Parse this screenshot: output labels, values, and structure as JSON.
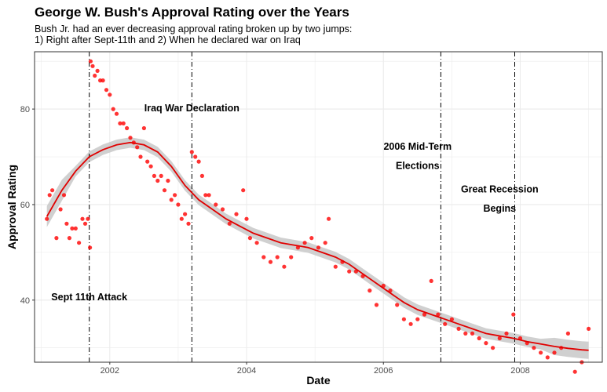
{
  "title": "George W. Bush's Approval Rating over the Years",
  "subtitle": "Bush Jr. had an ever decreasing approval rating broken up by two jumps:\n1) Right after Sept-11th and 2) When he declared war on Iraq",
  "colors": {
    "points": "#ff0000",
    "trend": "#e00000",
    "band": "#c8c8c8",
    "grid": "#ebebeb",
    "panel_border": "#333333"
  },
  "chart_data": {
    "type": "scatter",
    "title": "George W. Bush's Approval Rating over the Years",
    "xlabel": "Date",
    "ylabel": "Approval Rating",
    "xlim": [
      2000.9,
      2009.2
    ],
    "ylim": [
      27,
      92
    ],
    "x_ticks": [
      2002,
      2004,
      2006,
      2008
    ],
    "x_tick_labels": [
      "2002",
      "2004",
      "2006",
      "2008"
    ],
    "y_ticks": [
      40,
      60,
      80
    ],
    "y_tick_labels": [
      "40",
      "60",
      "80"
    ],
    "grid": true,
    "legend": "none",
    "series": [
      {
        "type": "scatter",
        "points": [
          [
            2001.08,
            57
          ],
          [
            2001.12,
            62
          ],
          [
            2001.16,
            63
          ],
          [
            2001.22,
            53
          ],
          [
            2001.28,
            59
          ],
          [
            2001.33,
            62
          ],
          [
            2001.37,
            56
          ],
          [
            2001.41,
            53
          ],
          [
            2001.45,
            55
          ],
          [
            2001.5,
            55
          ],
          [
            2001.55,
            52
          ],
          [
            2001.6,
            57
          ],
          [
            2001.64,
            56
          ],
          [
            2001.68,
            57
          ],
          [
            2001.71,
            51
          ],
          [
            2001.72,
            90
          ],
          [
            2001.75,
            89
          ],
          [
            2001.78,
            87
          ],
          [
            2001.82,
            88
          ],
          [
            2001.86,
            86
          ],
          [
            2001.9,
            86
          ],
          [
            2001.95,
            84
          ],
          [
            2002.0,
            83
          ],
          [
            2002.05,
            80
          ],
          [
            2002.1,
            79
          ],
          [
            2002.15,
            77
          ],
          [
            2002.2,
            77
          ],
          [
            2002.25,
            76
          ],
          [
            2002.3,
            74
          ],
          [
            2002.35,
            73
          ],
          [
            2002.4,
            72
          ],
          [
            2002.45,
            70
          ],
          [
            2002.5,
            76
          ],
          [
            2002.55,
            69
          ],
          [
            2002.6,
            68
          ],
          [
            2002.65,
            66
          ],
          [
            2002.7,
            65
          ],
          [
            2002.75,
            66
          ],
          [
            2002.8,
            63
          ],
          [
            2002.85,
            65
          ],
          [
            2002.9,
            61
          ],
          [
            2002.95,
            62
          ],
          [
            2003.0,
            60
          ],
          [
            2003.05,
            57
          ],
          [
            2003.1,
            58
          ],
          [
            2003.15,
            56
          ],
          [
            2003.2,
            71
          ],
          [
            2003.25,
            70
          ],
          [
            2003.3,
            69
          ],
          [
            2003.35,
            66
          ],
          [
            2003.4,
            62
          ],
          [
            2003.45,
            62
          ],
          [
            2003.55,
            60
          ],
          [
            2003.65,
            59
          ],
          [
            2003.75,
            56
          ],
          [
            2003.85,
            58
          ],
          [
            2003.95,
            63
          ],
          [
            2004.0,
            57
          ],
          [
            2004.05,
            53
          ],
          [
            2004.15,
            52
          ],
          [
            2004.25,
            49
          ],
          [
            2004.35,
            48
          ],
          [
            2004.45,
            49
          ],
          [
            2004.55,
            47
          ],
          [
            2004.65,
            49
          ],
          [
            2004.75,
            51
          ],
          [
            2004.85,
            52
          ],
          [
            2004.95,
            53
          ],
          [
            2005.05,
            51
          ],
          [
            2005.15,
            52
          ],
          [
            2005.2,
            57
          ],
          [
            2005.3,
            47
          ],
          [
            2005.4,
            48
          ],
          [
            2005.5,
            46
          ],
          [
            2005.6,
            46
          ],
          [
            2005.7,
            45
          ],
          [
            2005.8,
            42
          ],
          [
            2005.9,
            39
          ],
          [
            2006.0,
            43
          ],
          [
            2006.1,
            42
          ],
          [
            2006.2,
            39
          ],
          [
            2006.3,
            36
          ],
          [
            2006.4,
            35
          ],
          [
            2006.5,
            36
          ],
          [
            2006.6,
            37
          ],
          [
            2006.7,
            44
          ],
          [
            2006.8,
            37
          ],
          [
            2006.9,
            35
          ],
          [
            2007.0,
            36
          ],
          [
            2007.1,
            34
          ],
          [
            2007.2,
            33
          ],
          [
            2007.3,
            33
          ],
          [
            2007.4,
            32
          ],
          [
            2007.5,
            31
          ],
          [
            2007.6,
            30
          ],
          [
            2007.7,
            32
          ],
          [
            2007.8,
            33
          ],
          [
            2007.9,
            37
          ],
          [
            2008.0,
            32
          ],
          [
            2008.1,
            31
          ],
          [
            2008.2,
            30
          ],
          [
            2008.3,
            29
          ],
          [
            2008.4,
            28
          ],
          [
            2008.5,
            29
          ],
          [
            2008.6,
            30
          ],
          [
            2008.7,
            33
          ],
          [
            2008.8,
            25
          ],
          [
            2008.9,
            27
          ],
          [
            2009.0,
            34
          ]
        ]
      },
      {
        "type": "line",
        "smooth": true,
        "points": [
          [
            2001.08,
            57.5
          ],
          [
            2001.3,
            63
          ],
          [
            2001.5,
            67
          ],
          [
            2001.7,
            70
          ],
          [
            2001.9,
            71.5
          ],
          [
            2002.1,
            72.5
          ],
          [
            2002.3,
            73
          ],
          [
            2002.5,
            72.5
          ],
          [
            2002.7,
            71
          ],
          [
            2002.9,
            68
          ],
          [
            2003.1,
            64
          ],
          [
            2003.3,
            61
          ],
          [
            2003.5,
            59
          ],
          [
            2003.7,
            57
          ],
          [
            2003.9,
            55.5
          ],
          [
            2004.1,
            54
          ],
          [
            2004.3,
            53
          ],
          [
            2004.5,
            52
          ],
          [
            2004.7,
            51.5
          ],
          [
            2004.9,
            51
          ],
          [
            2005.1,
            50
          ],
          [
            2005.3,
            49
          ],
          [
            2005.5,
            47.5
          ],
          [
            2005.7,
            45.5
          ],
          [
            2005.9,
            43.5
          ],
          [
            2006.1,
            41.5
          ],
          [
            2006.3,
            39.5
          ],
          [
            2006.5,
            38
          ],
          [
            2006.7,
            37
          ],
          [
            2006.9,
            36
          ],
          [
            2007.1,
            35
          ],
          [
            2007.3,
            34
          ],
          [
            2007.5,
            33
          ],
          [
            2007.7,
            32.5
          ],
          [
            2007.9,
            32
          ],
          [
            2008.1,
            31.3
          ],
          [
            2008.3,
            30.8
          ],
          [
            2008.5,
            30.3
          ],
          [
            2008.7,
            29.9
          ],
          [
            2008.9,
            29.6
          ],
          [
            2009.0,
            29.5
          ]
        ]
      }
    ],
    "vlines": [
      2001.7,
      2003.2,
      2006.84,
      2007.92
    ],
    "annotations": [
      {
        "text": "Iraq War Declaration",
        "x": 2003.2,
        "y": 79.5
      },
      {
        "text": "2006 Mid-Term",
        "x": 2006.5,
        "y": 71.5
      },
      {
        "text": "Elections",
        "x": 2006.5,
        "y": 67.5
      },
      {
        "text": "Great Recession",
        "x": 2007.7,
        "y": 62.5
      },
      {
        "text": "Begins",
        "x": 2007.7,
        "y": 58.5
      },
      {
        "text": "Sept 11th Attack",
        "x": 2001.7,
        "y": 40
      }
    ]
  }
}
